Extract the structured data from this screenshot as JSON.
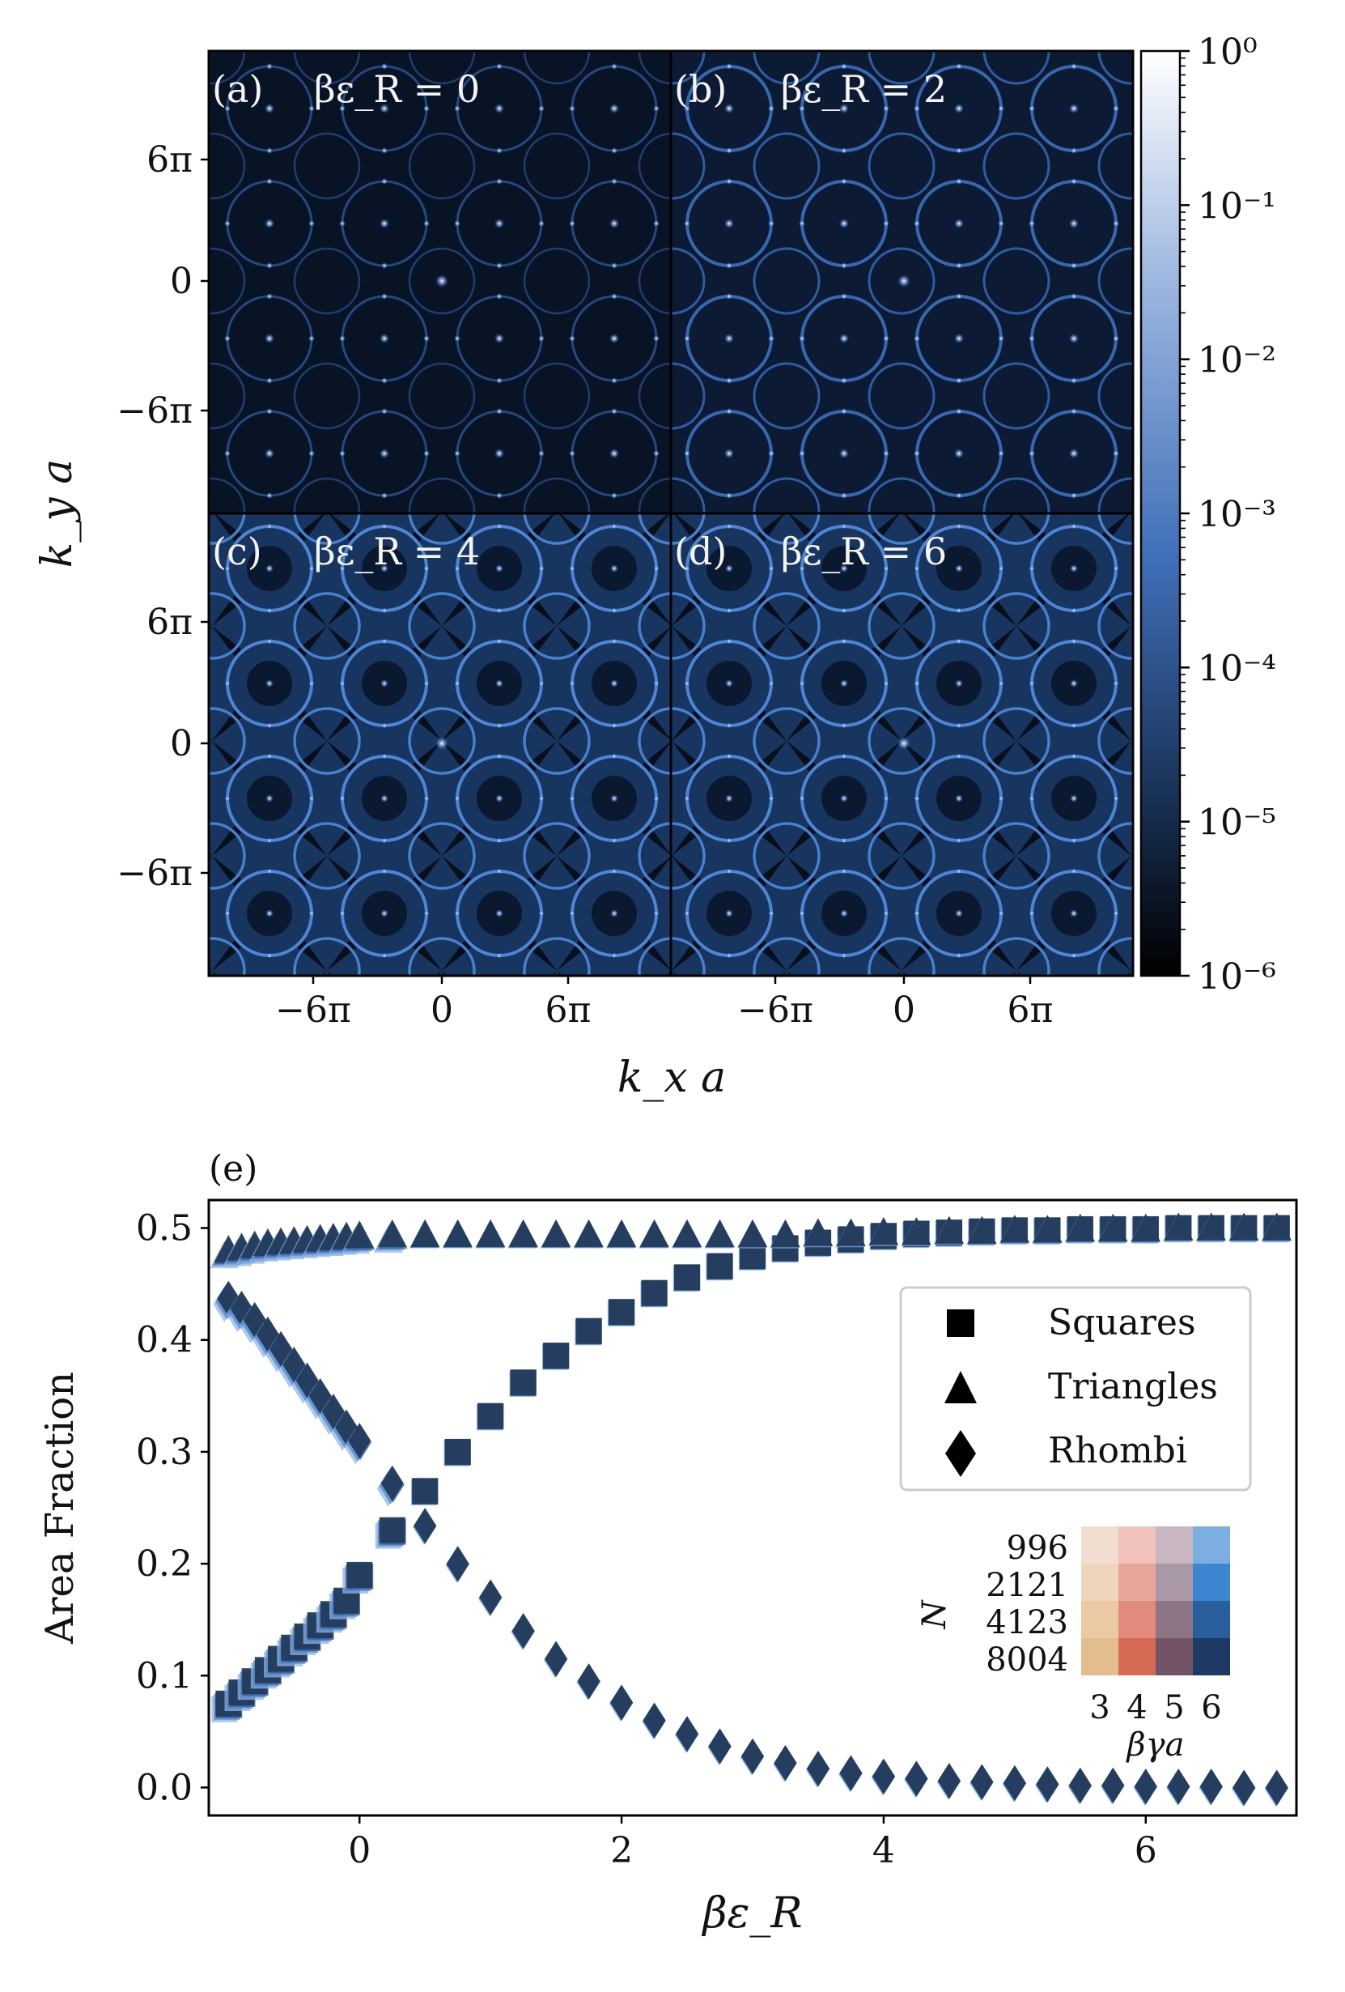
{
  "chart_data": [
    {
      "type": "heatmap",
      "panels": [
        {
          "label": "(a)",
          "annotation": "βε_R = 0"
        },
        {
          "label": "(b)",
          "annotation": "βε_R = 2"
        },
        {
          "label": "(c)",
          "annotation": "βε_R = 4"
        },
        {
          "label": "(d)",
          "annotation": "βε_R = 6"
        }
      ],
      "xlabel": "k_x a",
      "ylabel": "k_y a",
      "xticks": [
        "−6π",
        "0",
        "6π"
      ],
      "yticks": [
        "6π",
        "0",
        "−6π"
      ],
      "colorbar": {
        "scale": "log",
        "range": [
          1e-06,
          1
        ],
        "ticks": [
          "10⁰",
          "10⁻¹",
          "10⁻²",
          "10⁻³",
          "10⁻⁴",
          "10⁻⁵",
          "10⁻⁶"
        ],
        "colors": [
          "#000000",
          "#1a3358",
          "#3f6fb8",
          "#9cb6df",
          "#ffffff"
        ]
      }
    },
    {
      "type": "scatter",
      "panel_label": "(e)",
      "xlabel": "βε_R",
      "ylabel": "Area Fraction",
      "xlim": [
        -1.15,
        7.15
      ],
      "ylim": [
        -0.025,
        0.525
      ],
      "xticks": [
        "0",
        "2",
        "4",
        "6"
      ],
      "yticks": [
        "0.0",
        "0.1",
        "0.2",
        "0.3",
        "0.4",
        "0.5"
      ],
      "legend": {
        "placement": "right",
        "entries": [
          {
            "marker": "square",
            "label": "Squares"
          },
          {
            "marker": "triangle",
            "label": "Triangles"
          },
          {
            "marker": "diamond",
            "label": "Rhombi"
          }
        ]
      },
      "x": [
        -1.0,
        -0.9,
        -0.8,
        -0.7,
        -0.6,
        -0.5,
        -0.4,
        -0.3,
        -0.2,
        -0.1,
        0.0,
        0.25,
        0.5,
        0.75,
        1.0,
        1.25,
        1.5,
        1.75,
        2.0,
        2.25,
        2.5,
        2.75,
        3.0,
        3.25,
        3.5,
        3.75,
        4.0,
        4.25,
        4.5,
        4.75,
        5.0,
        5.25,
        5.5,
        5.75,
        6.0,
        6.25,
        6.5,
        6.75,
        7.0
      ],
      "series": [
        {
          "name": "Squares",
          "values": [
            0.075,
            0.085,
            0.095,
            0.105,
            0.115,
            0.125,
            0.135,
            0.145,
            0.155,
            0.167,
            0.19,
            0.23,
            0.265,
            0.3,
            0.332,
            0.362,
            0.386,
            0.408,
            0.425,
            0.442,
            0.456,
            0.466,
            0.475,
            0.482,
            0.487,
            0.49,
            0.493,
            0.495,
            0.496,
            0.497,
            0.498,
            0.498,
            0.499,
            0.499,
            0.499,
            0.5,
            0.5,
            0.5,
            0.5
          ]
        },
        {
          "name": "Triangles",
          "values": [
            0.48,
            0.482,
            0.484,
            0.486,
            0.487,
            0.488,
            0.489,
            0.49,
            0.491,
            0.492,
            0.493,
            0.494,
            0.494,
            0.494,
            0.494,
            0.494,
            0.494,
            0.494,
            0.494,
            0.494,
            0.494,
            0.494,
            0.494,
            0.494,
            0.495,
            0.495,
            0.496,
            0.496,
            0.497,
            0.497,
            0.498,
            0.498,
            0.499,
            0.499,
            0.499,
            0.5,
            0.5,
            0.5,
            0.5
          ]
        },
        {
          "name": "Rhombi",
          "values": [
            0.437,
            0.428,
            0.418,
            0.405,
            0.392,
            0.378,
            0.364,
            0.35,
            0.336,
            0.322,
            0.31,
            0.272,
            0.234,
            0.2,
            0.17,
            0.14,
            0.115,
            0.095,
            0.076,
            0.06,
            0.048,
            0.037,
            0.028,
            0.022,
            0.017,
            0.013,
            0.01,
            0.008,
            0.006,
            0.005,
            0.004,
            0.003,
            0.002,
            0.002,
            0.001,
            0.001,
            0.001,
            0.0,
            0.0
          ]
        }
      ],
      "inset": {
        "ylabel": "N",
        "xlabel": "βγa",
        "rows": [
          "996",
          "2121",
          "4123",
          "8004"
        ],
        "cols": [
          "3",
          "4",
          "5",
          "6"
        ],
        "colors": [
          [
            "#f1ded0",
            "#f0c2bb",
            "#c8b7c1",
            "#7daee0"
          ],
          [
            "#efd5bd",
            "#e8a69a",
            "#a898a8",
            "#3d85d0"
          ],
          [
            "#ebcaa3",
            "#e08b7b",
            "#8e7487",
            "#285f9c"
          ],
          [
            "#e3bd8e",
            "#d66a55",
            "#735466",
            "#1c3a64"
          ]
        ]
      }
    }
  ]
}
